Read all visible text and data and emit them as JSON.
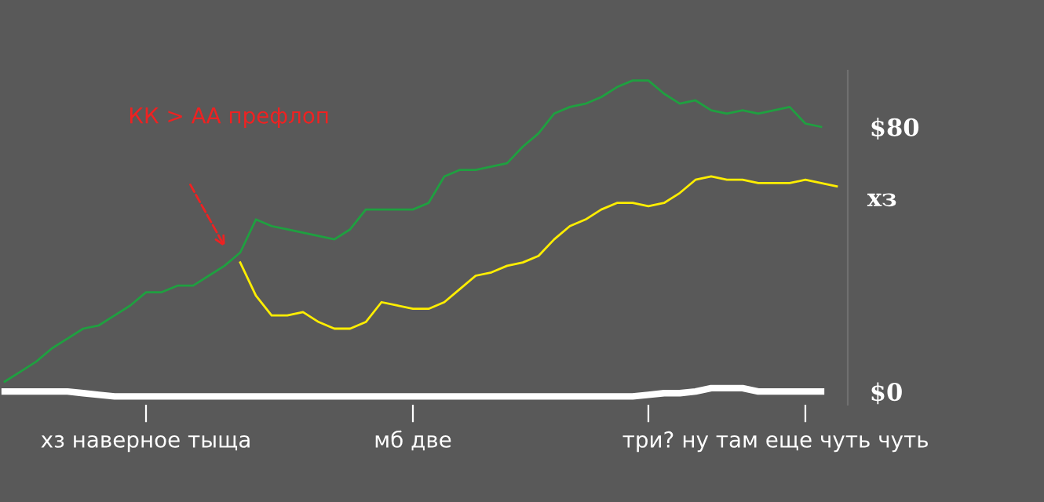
{
  "chart_data": {
    "type": "line",
    "categories": [
      null,
      null,
      null,
      null,
      null,
      null,
      null,
      null,
      null,
      "хз наверное тыща",
      null,
      null,
      null,
      null,
      null,
      null,
      null,
      null,
      null,
      null,
      null,
      null,
      null,
      null,
      null,
      null,
      "мб две",
      null,
      null,
      null,
      null,
      null,
      null,
      null,
      null,
      null,
      null,
      null,
      null,
      null,
      null,
      "три?",
      null,
      null,
      null,
      null,
      null,
      null,
      null,
      null,
      null,
      "ну там еще чуть чуть",
      null,
      null
    ],
    "ylim": [
      -4,
      97
    ],
    "yticks": [
      {
        "value": 0,
        "label": "$0"
      },
      {
        "value": 80,
        "label": "$80"
      }
    ],
    "series": [
      {
        "color": "#1fa040",
        "values": [
          3,
          6,
          9,
          13,
          16,
          19,
          20,
          23,
          26,
          30,
          30,
          32,
          32,
          35,
          38,
          42,
          52,
          50,
          49,
          48,
          47,
          46,
          49,
          55,
          55,
          55,
          55,
          57,
          65,
          67,
          67,
          68,
          69,
          74,
          78,
          84,
          86,
          87,
          89,
          92,
          94,
          94,
          90,
          87,
          88,
          85,
          84,
          85,
          84,
          85,
          86,
          81,
          80,
          null
        ]
      },
      {
        "name": "хз",
        "color": "#ffee00",
        "values": [
          null,
          null,
          null,
          null,
          null,
          null,
          null,
          null,
          null,
          null,
          null,
          null,
          null,
          null,
          null,
          39,
          29,
          23,
          23,
          24,
          21,
          19,
          19,
          21,
          27,
          26,
          25,
          25,
          27,
          31,
          35,
          36,
          38,
          39,
          41,
          46,
          50,
          52,
          55,
          57,
          57,
          56,
          57,
          60,
          64,
          65,
          64,
          64,
          63,
          63,
          63,
          64,
          63,
          62
        ]
      },
      {
        "color": "#ffffff",
        "values": [
          0,
          0,
          0,
          0,
          0,
          -0.5,
          -1,
          -1.5,
          -1.5,
          -1.5,
          -1.5,
          -1.5,
          -1.5,
          -1.5,
          -1.5,
          -1.5,
          -1.5,
          -1.5,
          -1.5,
          -1.5,
          -1.5,
          -1.5,
          -1.5,
          -1.5,
          -1.5,
          -1.5,
          -1.5,
          -1.5,
          -1.5,
          -1.5,
          -1.5,
          -1.5,
          -1.5,
          -1.5,
          -1.5,
          -1.5,
          -1.5,
          -1.5,
          -1.5,
          -1.5,
          -1.5,
          -1,
          -0.5,
          -0.5,
          0,
          1,
          1,
          1,
          0,
          0,
          0,
          0,
          0,
          null
        ]
      }
    ],
    "annotations": [
      "КК > АА префлоп"
    ],
    "legend": false
  }
}
